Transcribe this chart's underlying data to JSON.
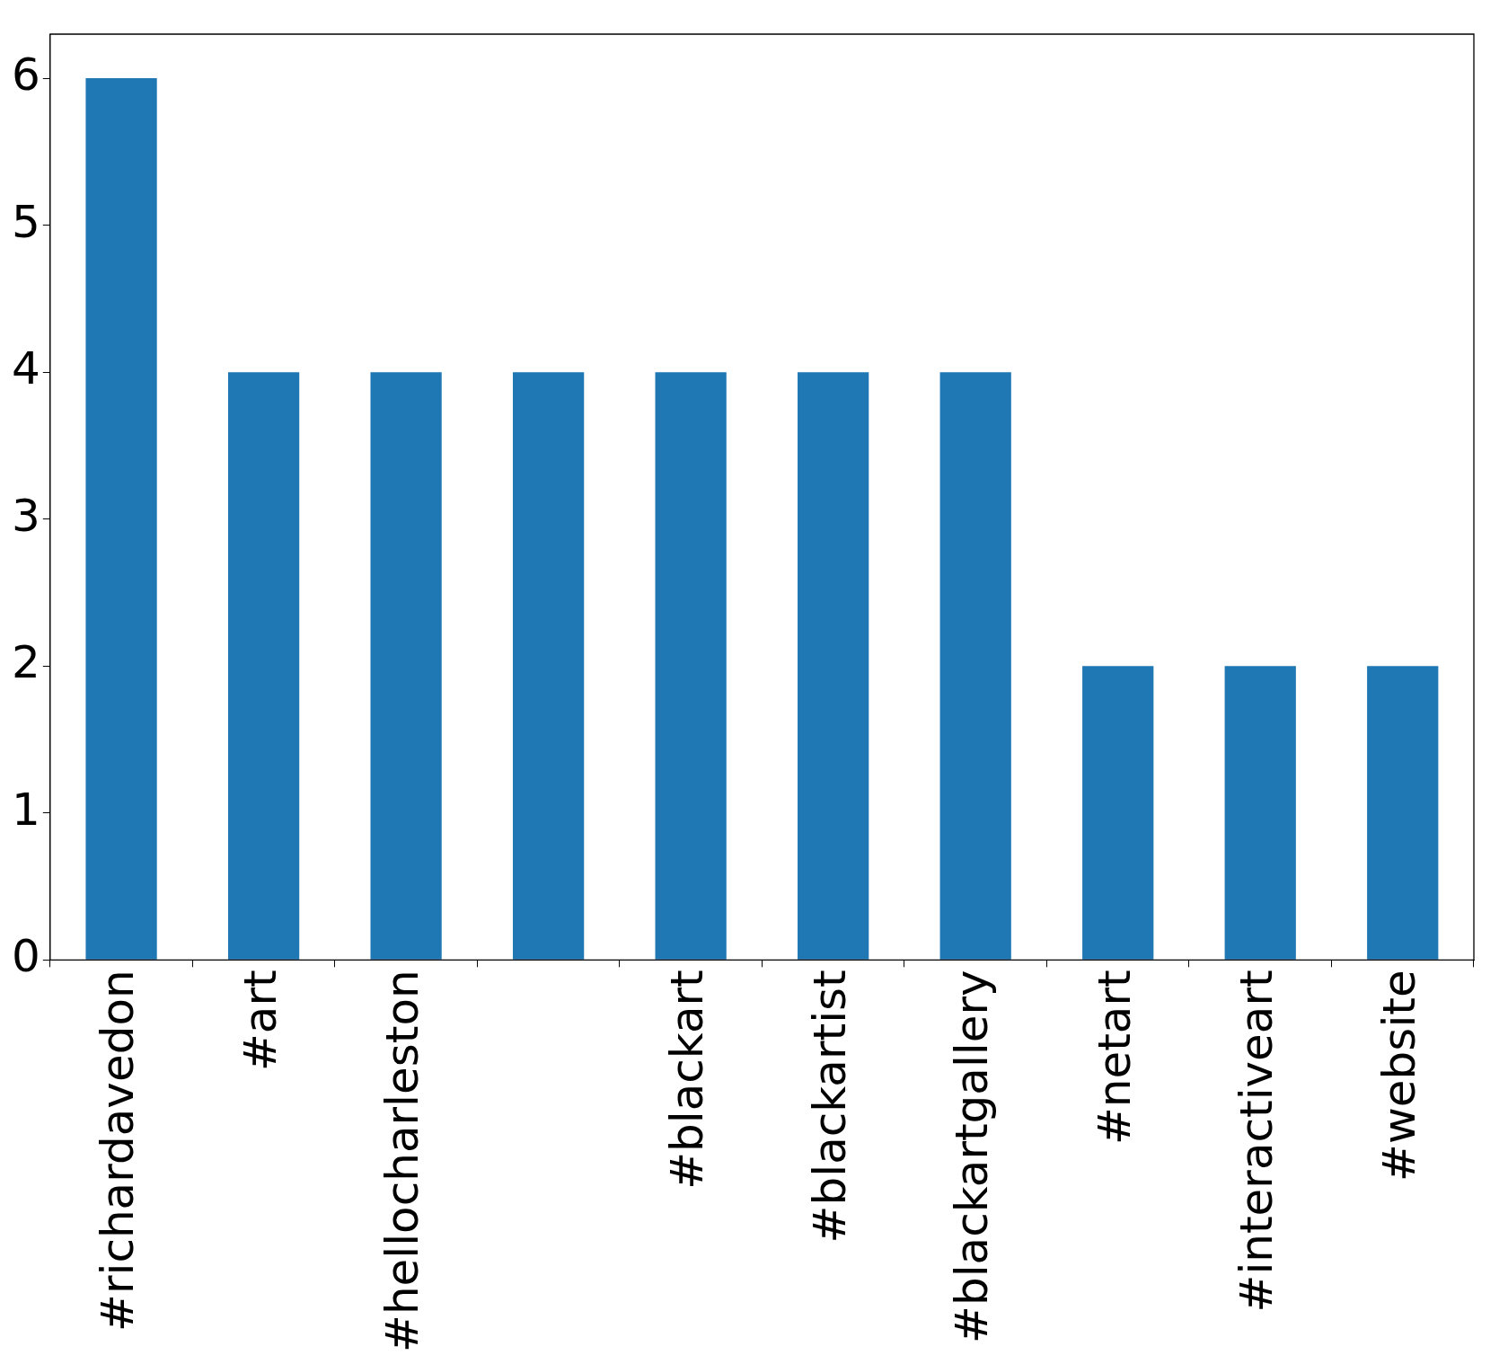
{
  "chart_data": {
    "type": "bar",
    "categories": [
      "#richardavedon",
      "#art",
      "#hellocharleston",
      null,
      "#blackart",
      "#blackartist",
      "#blackartgallery",
      "#netart",
      "#interactiveart",
      "#website"
    ],
    "values": [
      6,
      4,
      4,
      4,
      4,
      4,
      4,
      2,
      2,
      2
    ],
    "color": "#1f77b4",
    "ylim": [
      0,
      6.3
    ],
    "yticks": [
      0,
      1,
      2,
      3,
      4,
      5,
      6
    ],
    "grid": false,
    "legend": false
  }
}
